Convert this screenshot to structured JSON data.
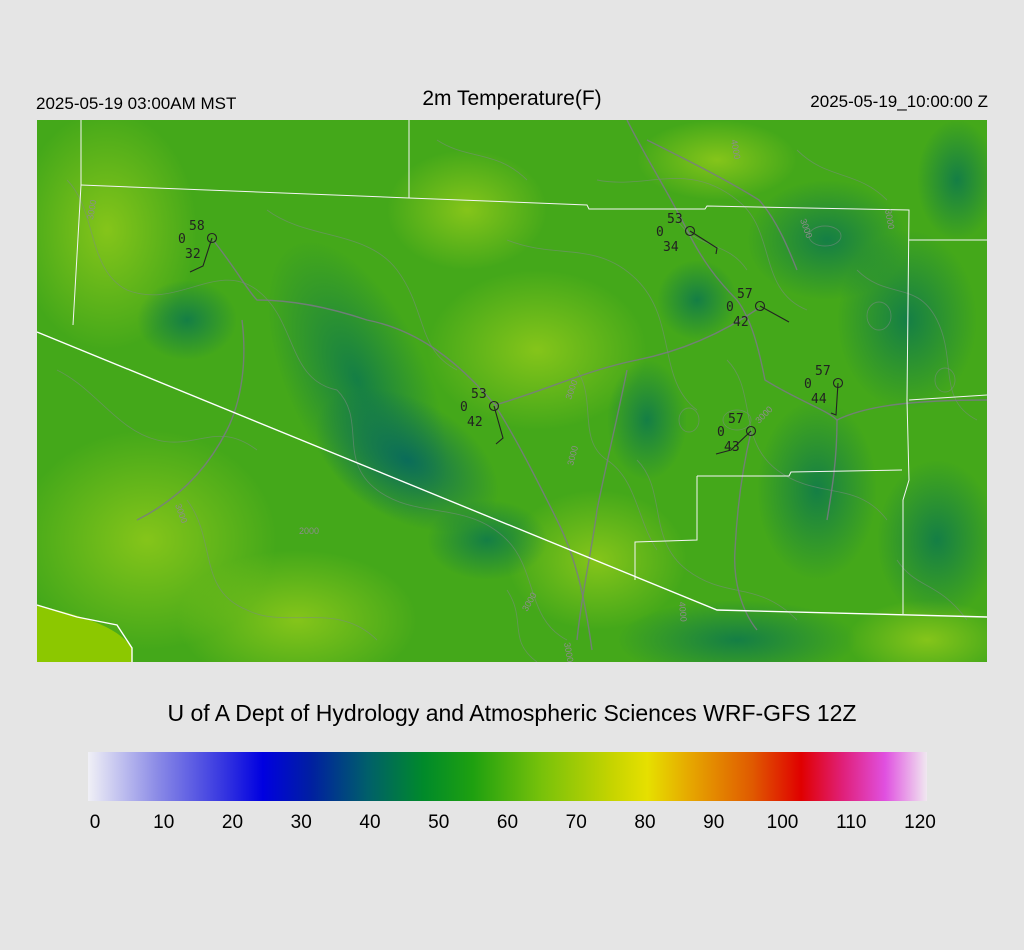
{
  "header": {
    "local_time": "2025-05-19 03:00AM MST",
    "title": "2m Temperature(F)",
    "utc_time": "2025-05-19_10:00:00 Z"
  },
  "footer": {
    "credit": "U of A Dept of Hydrology and Atmospheric Sciences WRF-GFS 12Z"
  },
  "colorbar": {
    "ticks": [
      "0",
      "10",
      "20",
      "30",
      "40",
      "50",
      "60",
      "70",
      "80",
      "90",
      "100",
      "110",
      "120"
    ],
    "min": 0,
    "max": 120,
    "stops": [
      {
        "value": 0,
        "color": "#f0f0f6"
      },
      {
        "value": 10,
        "color": "#8a8ae6"
      },
      {
        "value": 20,
        "color": "#3030e0"
      },
      {
        "value": 25,
        "color": "#0000e0"
      },
      {
        "value": 32,
        "color": "#0020a0"
      },
      {
        "value": 40,
        "color": "#005f6a"
      },
      {
        "value": 48,
        "color": "#008a2a"
      },
      {
        "value": 55,
        "color": "#1ea010"
      },
      {
        "value": 65,
        "color": "#79c20a"
      },
      {
        "value": 75,
        "color": "#c6d400"
      },
      {
        "value": 80,
        "color": "#e6e000"
      },
      {
        "value": 86,
        "color": "#e6a800"
      },
      {
        "value": 95,
        "color": "#e05a00"
      },
      {
        "value": 102,
        "color": "#e00000"
      },
      {
        "value": 108,
        "color": "#e0207a"
      },
      {
        "value": 114,
        "color": "#e050e0"
      },
      {
        "value": 120,
        "color": "#f0e8f0"
      }
    ]
  },
  "map": {
    "contour_labels": [
      "3000",
      "2000",
      "3000",
      "3000",
      "3000",
      "3000",
      "3000",
      "4000",
      "3000",
      "3000",
      "3000",
      "4000"
    ],
    "stations": [
      {
        "temp": "58",
        "cloud": "0",
        "dewpoint": "32"
      },
      {
        "temp": "53",
        "cloud": "0",
        "dewpoint": "34"
      },
      {
        "temp": "57",
        "cloud": "0",
        "dewpoint": "42"
      },
      {
        "temp": "53",
        "cloud": "0",
        "dewpoint": "42"
      },
      {
        "temp": "57",
        "cloud": "0",
        "dewpoint": "44"
      },
      {
        "temp": "57",
        "cloud": "0",
        "dewpoint": "43"
      }
    ]
  }
}
